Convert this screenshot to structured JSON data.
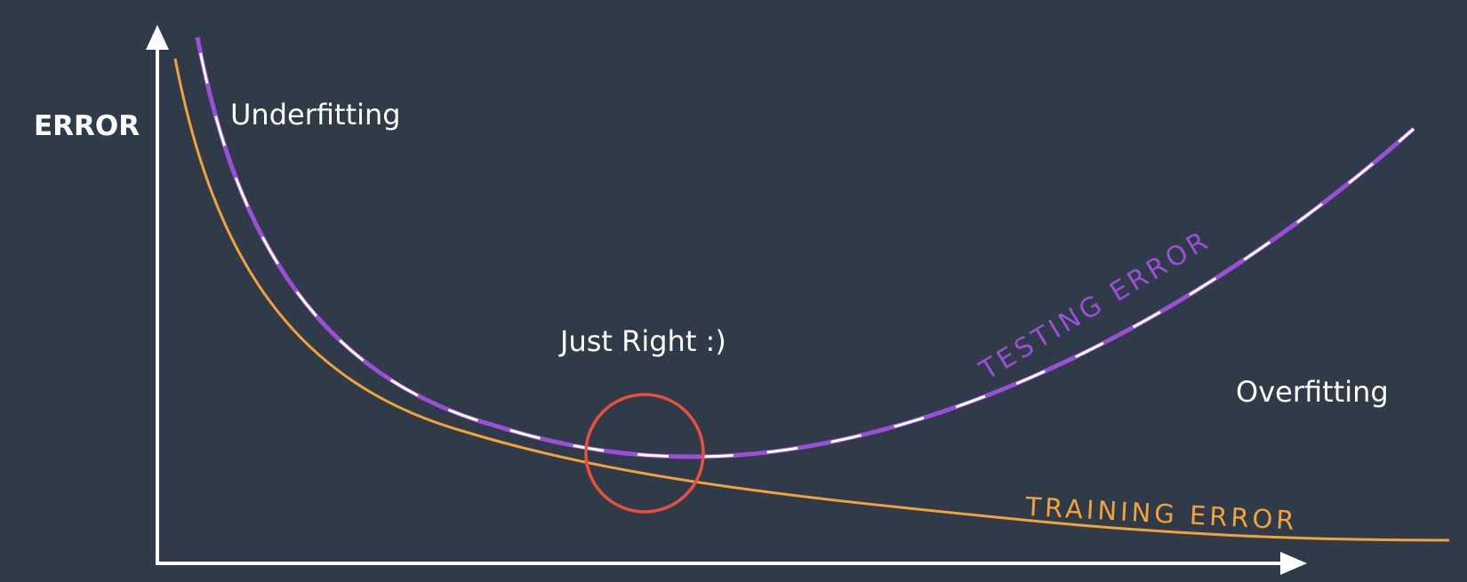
{
  "diagram": {
    "y_axis_label": "ERROR",
    "underfitting_label": "Underfitting",
    "just_right_label": "Just Right :)",
    "overfitting_label": "Overfitting",
    "testing_error_label": "TESTING ERROR",
    "training_error_label": "TRAINING ERROR"
  },
  "colors": {
    "background": "#2f3b49",
    "axis": "#ffffff",
    "text": "#ffffff",
    "testing_error": "#9b4ed6",
    "training_error": "#f2a23a",
    "highlight_circle": "#e8503d"
  },
  "icons": {
    "x_axis_arrow": "arrow-right-icon",
    "y_axis_arrow": "arrow-up-icon"
  }
}
